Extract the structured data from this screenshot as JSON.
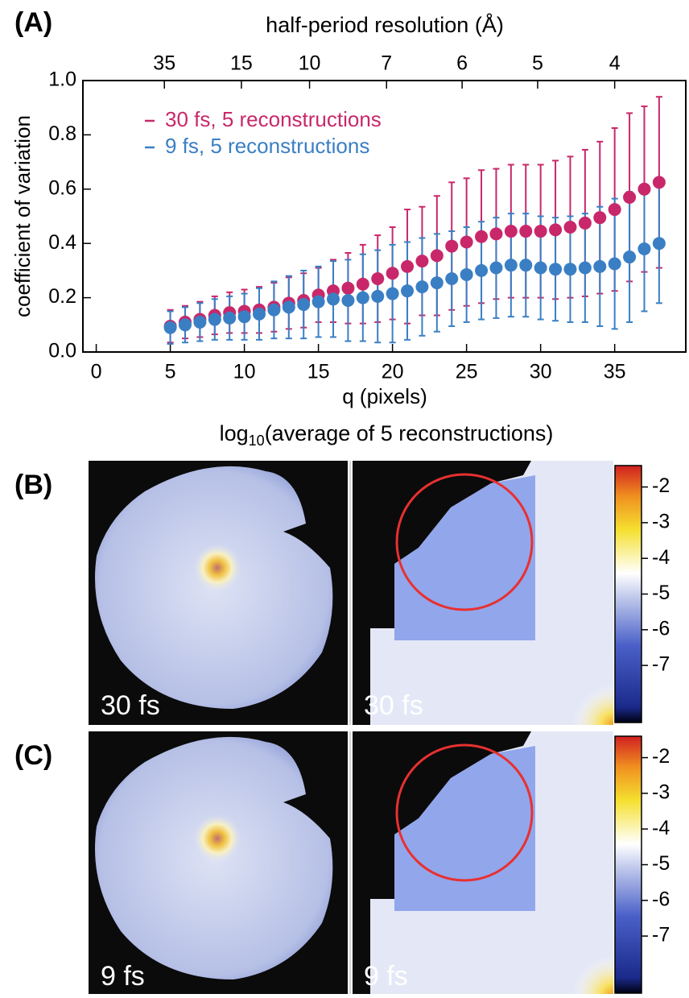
{
  "chart_data": [
    {
      "type": "scatter",
      "panel_label": "(A)",
      "x2label": "half-period resolution (Å)",
      "xlabel": "q (pixels)",
      "ylabel": "coefficient of variation",
      "xlim": [
        -0.9,
        39.8
      ],
      "ylim": [
        0,
        1
      ],
      "xticks": [
        0,
        5,
        10,
        15,
        20,
        25,
        30,
        35
      ],
      "yticks": [
        {
          "value": 0,
          "label": "0.0"
        },
        0.2,
        0.4,
        0.6,
        0.8,
        {
          "value": 1,
          "label": "1.0"
        }
      ],
      "x2ticks": [
        {
          "value": 4.6,
          "label": "35"
        },
        {
          "value": 9.8,
          "label": "15"
        },
        {
          "value": 14.4,
          "label": "10"
        },
        {
          "value": 19.6,
          "label": "7"
        },
        {
          "value": 24.7,
          "label": "6"
        },
        {
          "value": 29.8,
          "label": "5"
        },
        {
          "value": 35.0,
          "label": "4"
        }
      ],
      "x": [
        5,
        6,
        7,
        8,
        9,
        10,
        11,
        12,
        13,
        14,
        15,
        16,
        17,
        18,
        19,
        20,
        21,
        22,
        23,
        24,
        25,
        26,
        27,
        28,
        29,
        30,
        31,
        32,
        33,
        34,
        35,
        36,
        37,
        38
      ],
      "series": [
        {
          "name": "30 fs, 5 reconstructions",
          "color": "#c8286a",
          "values": [
            0.095,
            0.11,
            0.12,
            0.135,
            0.145,
            0.15,
            0.155,
            0.165,
            0.18,
            0.19,
            0.21,
            0.225,
            0.235,
            0.25,
            0.27,
            0.29,
            0.315,
            0.335,
            0.355,
            0.39,
            0.405,
            0.425,
            0.435,
            0.445,
            0.445,
            0.445,
            0.45,
            0.46,
            0.475,
            0.495,
            0.525,
            0.57,
            0.6,
            0.625
          ],
          "errors": [
            0.06,
            0.06,
            0.065,
            0.07,
            0.075,
            0.08,
            0.085,
            0.09,
            0.095,
            0.1,
            0.1,
            0.115,
            0.13,
            0.145,
            0.16,
            0.17,
            0.21,
            0.2,
            0.22,
            0.235,
            0.235,
            0.245,
            0.24,
            0.245,
            0.245,
            0.245,
            0.255,
            0.26,
            0.27,
            0.28,
            0.3,
            0.31,
            0.305,
            0.315
          ]
        },
        {
          "name": "9 fs, 5 reconstructions",
          "color": "#3a7fc4",
          "values": [
            0.09,
            0.1,
            0.11,
            0.12,
            0.125,
            0.13,
            0.14,
            0.155,
            0.165,
            0.175,
            0.185,
            0.195,
            0.19,
            0.2,
            0.205,
            0.215,
            0.225,
            0.24,
            0.255,
            0.27,
            0.285,
            0.3,
            0.31,
            0.32,
            0.32,
            0.31,
            0.305,
            0.305,
            0.31,
            0.315,
            0.325,
            0.35,
            0.38,
            0.4
          ],
          "errors": [
            0.06,
            0.065,
            0.07,
            0.075,
            0.08,
            0.085,
            0.095,
            0.105,
            0.115,
            0.125,
            0.13,
            0.14,
            0.15,
            0.16,
            0.17,
            0.18,
            0.18,
            0.18,
            0.18,
            0.175,
            0.175,
            0.18,
            0.185,
            0.19,
            0.19,
            0.19,
            0.19,
            0.195,
            0.2,
            0.22,
            0.24,
            0.24,
            0.23,
            0.22
          ]
        }
      ]
    },
    {
      "type": "image",
      "panel_label": "(B)",
      "title": [
        "log",
        "10",
        "(average of 5 reconstructions)"
      ],
      "labels": [
        "30 fs",
        "30 fs"
      ],
      "ylim": [
        -8.6,
        -1.4
      ],
      "yticks": [
        -2,
        -3,
        -4,
        -5,
        -6,
        -7
      ]
    },
    {
      "type": "image",
      "panel_label": "(C)",
      "labels": [
        "9 fs",
        "9 fs"
      ],
      "ylim": [
        -8.6,
        -1.4
      ],
      "yticks": [
        -2,
        -3,
        -4,
        -5,
        -6,
        -7
      ]
    }
  ]
}
